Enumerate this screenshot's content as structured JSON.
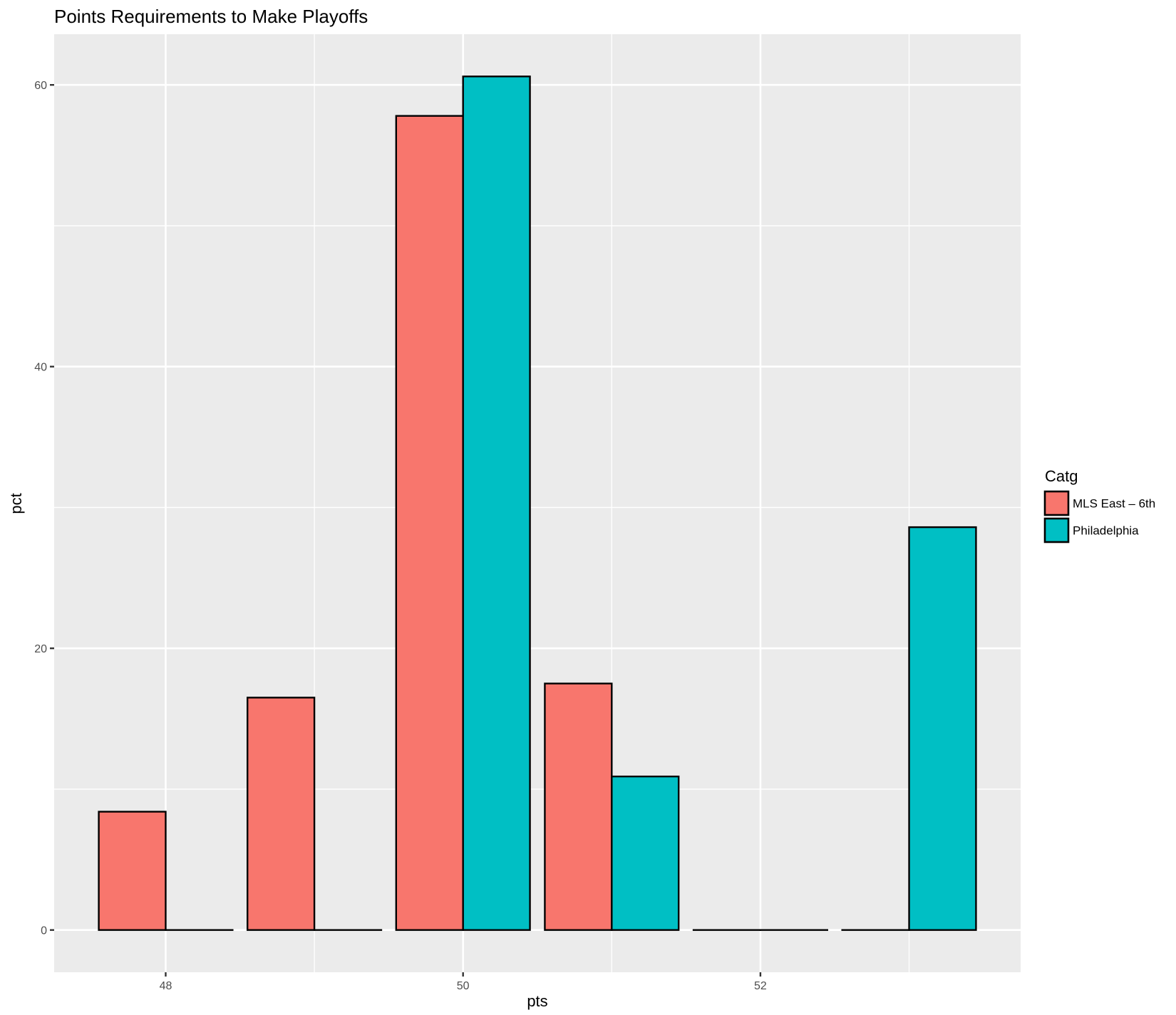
{
  "chart_data": {
    "type": "bar",
    "title": "Points Requirements to Make Playoffs",
    "xlabel": "pts",
    "ylabel": "pct",
    "categories": [
      48,
      49,
      50,
      51,
      52,
      53
    ],
    "xticks": [
      48,
      50,
      52
    ],
    "yticks": [
      0,
      20,
      40,
      60
    ],
    "xlim": [
      47.25,
      53.75
    ],
    "ylim": [
      -3.0,
      63.6
    ],
    "grid": true,
    "legend_title": "Catg",
    "legend_position": "right",
    "series": [
      {
        "name": "MLS East – 6th",
        "color": "#F8766D",
        "values": [
          8.4,
          16.5,
          57.8,
          17.5,
          0.0,
          0.0
        ]
      },
      {
        "name": "Philadelphia",
        "color": "#00BFC4",
        "values": [
          0.0,
          0.0,
          60.6,
          10.9,
          0.0,
          28.6
        ]
      }
    ]
  },
  "style": {
    "panel_background": "#EBEBEB",
    "grid_color": "#FFFFFF",
    "bar_outline": "#000000"
  }
}
